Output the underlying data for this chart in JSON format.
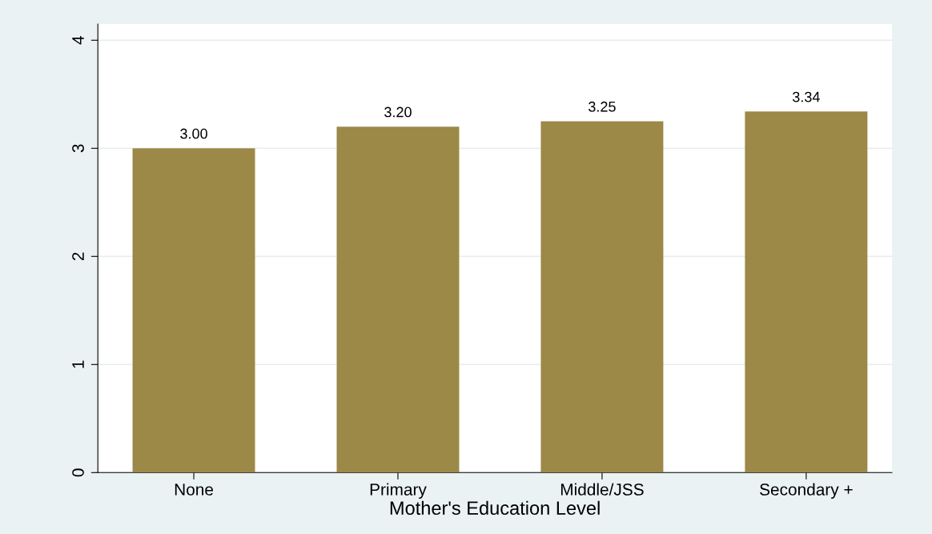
{
  "chart_data": {
    "type": "bar",
    "xlabel": "Mother's Education Level",
    "categories": [
      "None",
      "Primary",
      "Middle/JSS",
      "Secondary +"
    ],
    "values": [
      3.0,
      3.2,
      3.25,
      3.34
    ],
    "color": "#9c8847",
    "value_labels": [
      "3.00",
      "3.20",
      "3.25",
      "3.34"
    ],
    "ylim": [
      0,
      4.15
    ],
    "yticks": [
      0,
      1,
      2,
      3,
      4
    ],
    "grid": "y",
    "legend": false
  }
}
